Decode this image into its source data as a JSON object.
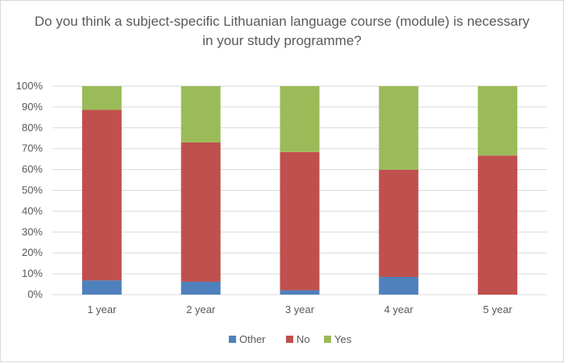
{
  "chart_data": {
    "type": "bar",
    "stacked": "percent",
    "title": "Do you think a subject-specific Lithuanian language course (module) is necessary in your study programme?",
    "categories": [
      "1 year",
      "2 year",
      "3 year",
      "4 year",
      "5 year"
    ],
    "series": [
      {
        "name": "Other",
        "color": "#4f81bd",
        "values": [
          6.8,
          6.2,
          2.1,
          8.5,
          0
        ]
      },
      {
        "name": "No",
        "color": "#c0504d",
        "values": [
          81.8,
          66.8,
          66.3,
          51.4,
          66.7
        ]
      },
      {
        "name": "Yes",
        "color": "#9bbb59",
        "values": [
          11.4,
          27.0,
          31.6,
          40.1,
          33.3
        ]
      }
    ],
    "ylim": [
      0,
      100
    ],
    "yticks": [
      "0%",
      "10%",
      "20%",
      "30%",
      "40%",
      "50%",
      "60%",
      "70%",
      "80%",
      "90%",
      "100%"
    ],
    "grid": true,
    "legend_position": "bottom"
  }
}
